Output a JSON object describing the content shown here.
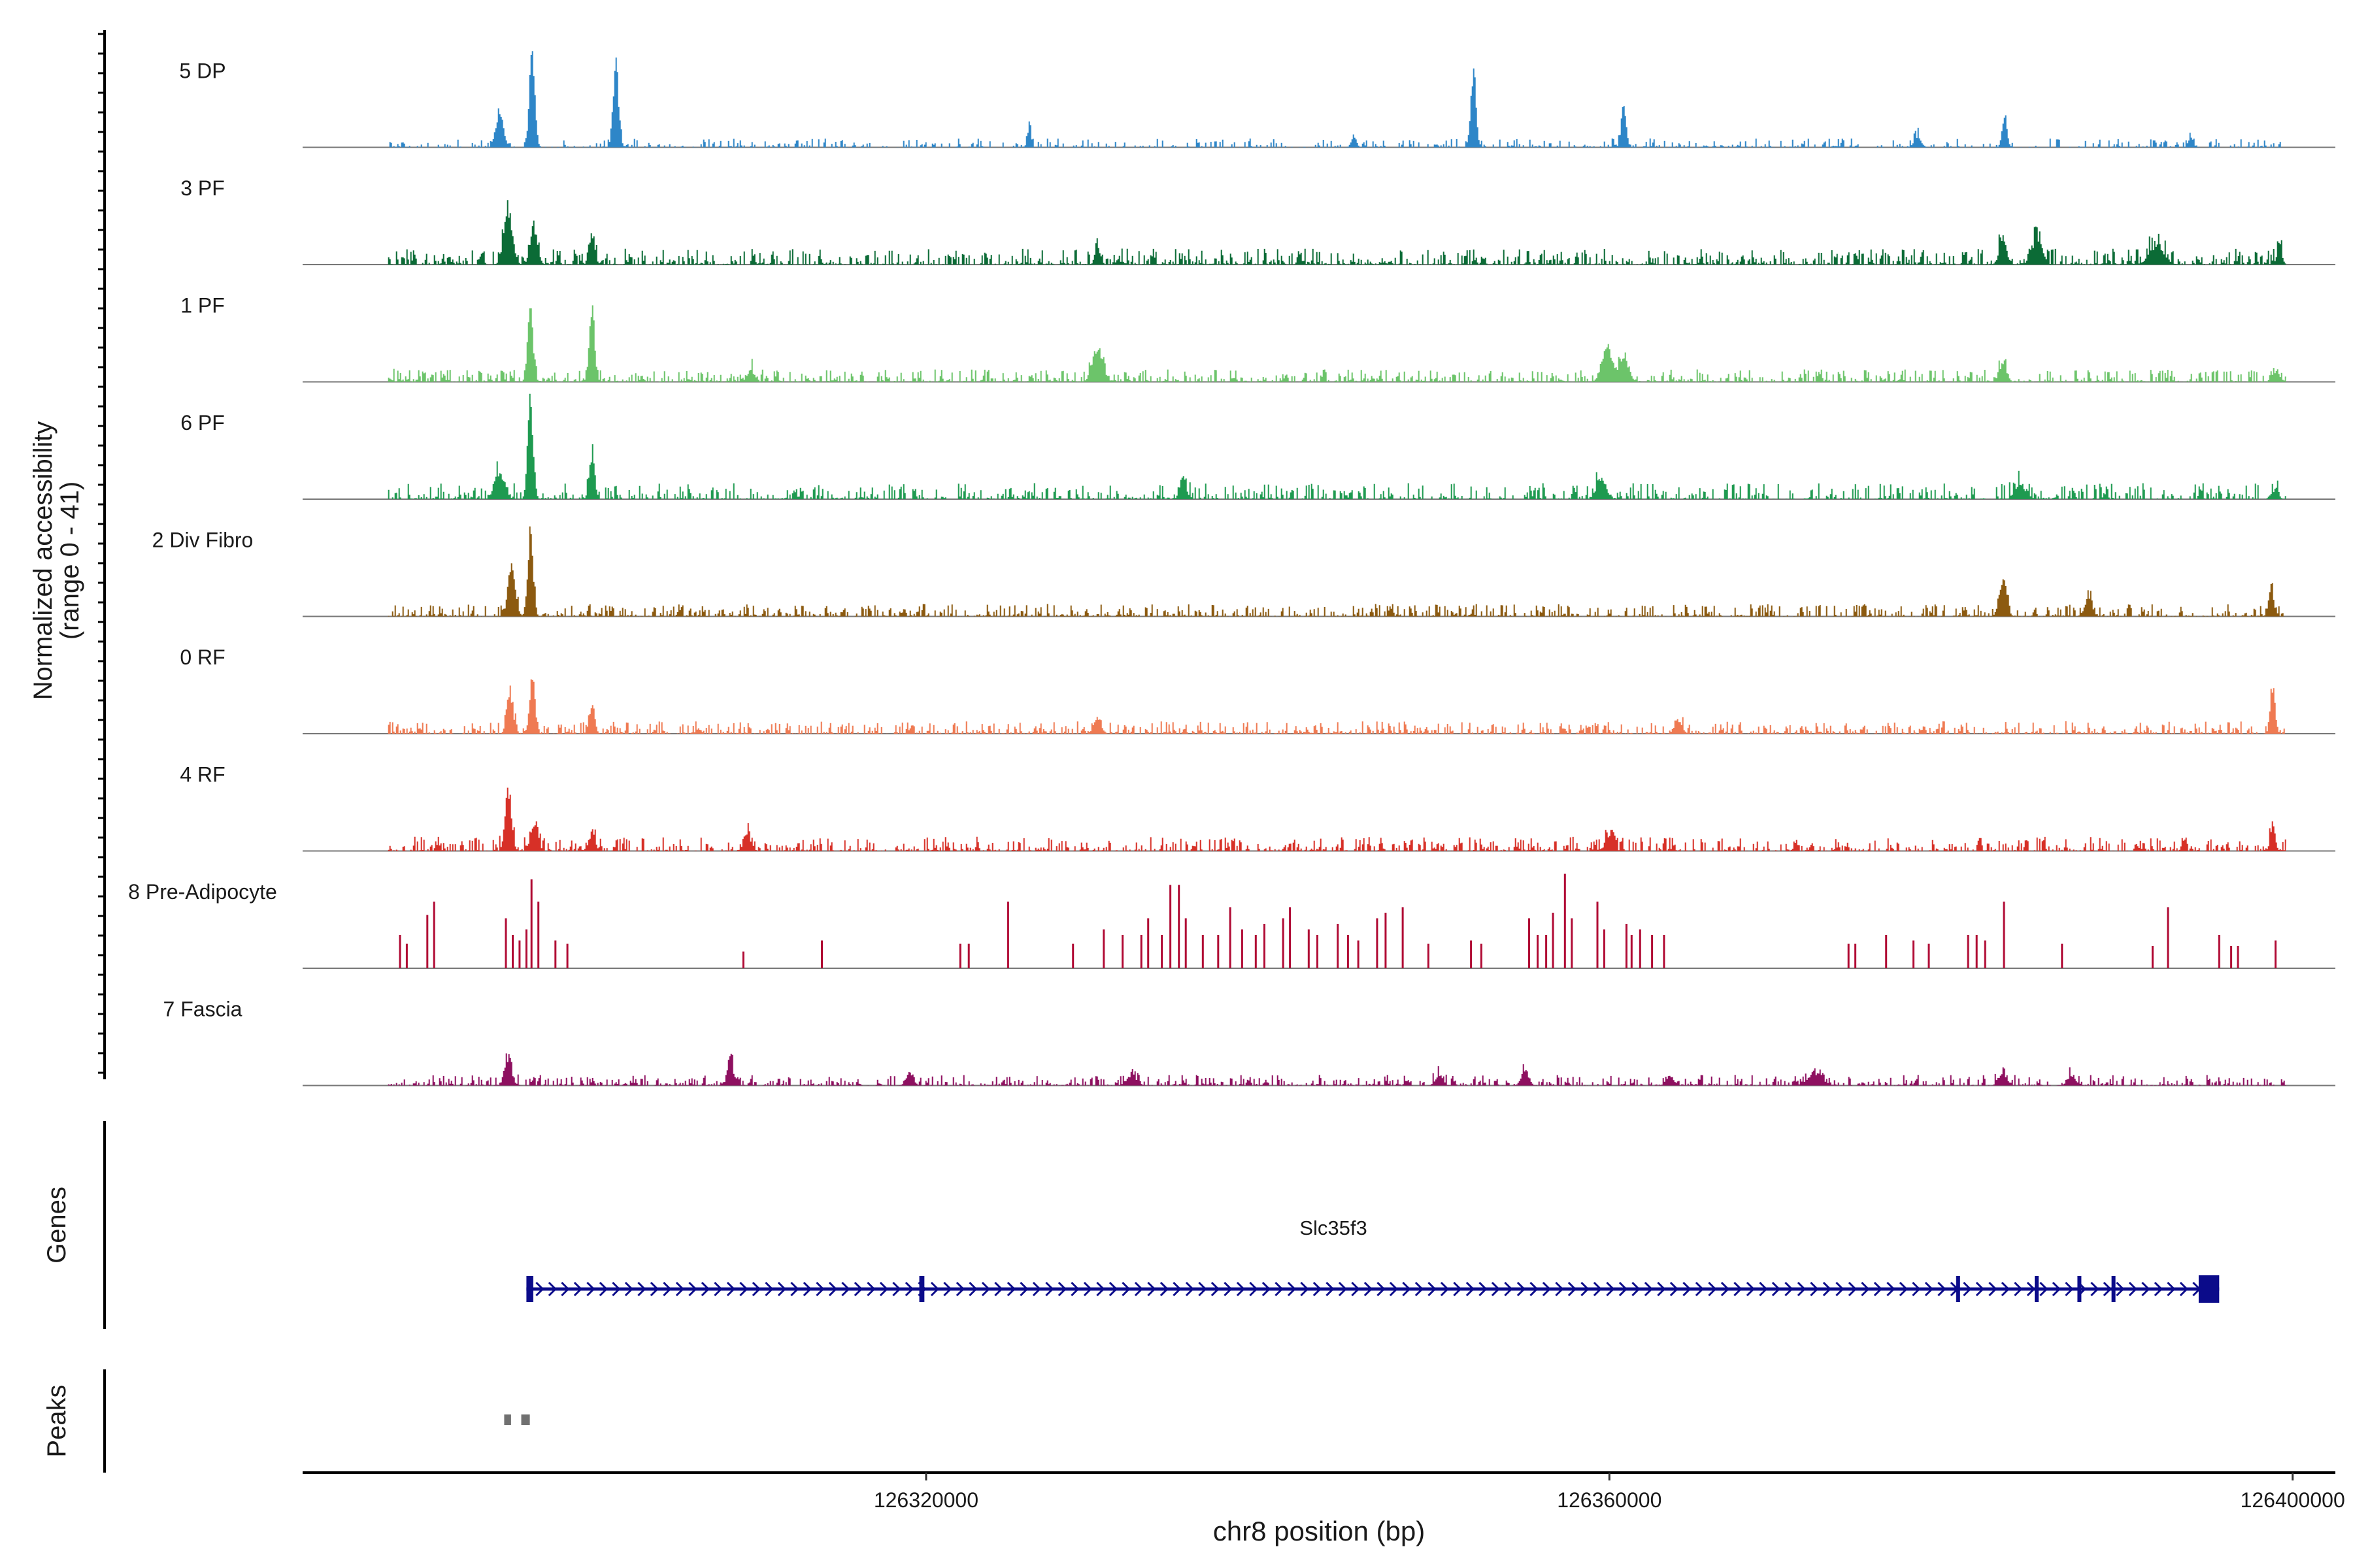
{
  "chart_data": {
    "type": "area",
    "title": "",
    "chromosome": "chr8",
    "xlabel": "chr8 position (bp)",
    "xlim": [
      126283500,
      126402500
    ],
    "xticks": [
      126320000,
      126360000,
      126400000
    ],
    "xtick_labels": [
      "126320000",
      "126360000",
      "126400000"
    ],
    "ylabel_line1": "Normalized accessibility",
    "ylabel_line2": "(range 0 - 41)",
    "ylim": [
      0,
      41
    ],
    "tracks": [
      {
        "name": "5 DP",
        "color": "#2e86c8",
        "style": "smooth",
        "density": 0.55,
        "noise": 0.05,
        "peaks": [
          [
            126295000,
            0.38,
            300
          ],
          [
            126296900,
            1.0,
            220
          ],
          [
            126301800,
            0.85,
            220
          ],
          [
            126326000,
            0.2,
            150
          ],
          [
            126345000,
            0.12,
            200
          ],
          [
            126352000,
            0.75,
            220
          ],
          [
            126360800,
            0.4,
            200
          ],
          [
            126378000,
            0.1,
            300
          ],
          [
            126383100,
            0.3,
            200
          ],
          [
            126394000,
            0.1,
            200
          ]
        ]
      },
      {
        "name": "3 PF",
        "color": "#0b6b36",
        "style": "smooth",
        "density": 0.85,
        "noise": 0.09,
        "peaks": [
          [
            126295500,
            0.55,
            350
          ],
          [
            126297000,
            0.35,
            300
          ],
          [
            126300400,
            0.32,
            220
          ],
          [
            126330000,
            0.2,
            200
          ],
          [
            126383000,
            0.25,
            300
          ],
          [
            126385000,
            0.25,
            400
          ],
          [
            126392000,
            0.18,
            600
          ],
          [
            126399200,
            0.18,
            200
          ]
        ]
      },
      {
        "name": "1 PF",
        "color": "#6cc46a",
        "style": "smooth",
        "density": 0.85,
        "noise": 0.07,
        "peaks": [
          [
            126296800,
            0.7,
            220
          ],
          [
            126300400,
            0.65,
            220
          ],
          [
            126288000,
            0.12,
            500
          ],
          [
            126309700,
            0.12,
            300
          ],
          [
            126330000,
            0.35,
            400
          ],
          [
            126359800,
            0.35,
            400
          ],
          [
            126360800,
            0.25,
            400
          ],
          [
            126383000,
            0.18,
            300
          ],
          [
            126399000,
            0.1,
            300
          ]
        ]
      },
      {
        "name": "6 PF",
        "color": "#1e9a50",
        "style": "smooth",
        "density": 0.75,
        "noise": 0.09,
        "peaks": [
          [
            126296800,
            1.0,
            220
          ],
          [
            126300400,
            0.45,
            220
          ],
          [
            126295000,
            0.25,
            400
          ],
          [
            126335000,
            0.22,
            250
          ],
          [
            126359500,
            0.2,
            400
          ],
          [
            126384000,
            0.15,
            400
          ],
          [
            126399000,
            0.12,
            200
          ]
        ]
      },
      {
        "name": "2 Div Fibro",
        "color": "#8c5a10",
        "style": "smooth",
        "density": 0.8,
        "noise": 0.07,
        "peaks": [
          [
            126295700,
            0.5,
            300
          ],
          [
            126296800,
            0.8,
            220
          ],
          [
            126383000,
            0.38,
            300
          ],
          [
            126388000,
            0.18,
            300
          ],
          [
            126398700,
            0.3,
            200
          ]
        ]
      },
      {
        "name": "0 RF",
        "color": "#ef7a52",
        "style": "smooth",
        "density": 0.85,
        "noise": 0.07,
        "peaks": [
          [
            126295600,
            0.42,
            250
          ],
          [
            126296900,
            0.55,
            220
          ],
          [
            126300400,
            0.3,
            220
          ],
          [
            126330000,
            0.16,
            300
          ],
          [
            126364000,
            0.14,
            300
          ],
          [
            126398800,
            0.45,
            200
          ]
        ]
      },
      {
        "name": "4 RF",
        "color": "#d73027",
        "style": "smooth",
        "density": 0.8,
        "noise": 0.08,
        "peaks": [
          [
            126295500,
            0.6,
            250
          ],
          [
            126297000,
            0.25,
            300
          ],
          [
            126300400,
            0.18,
            250
          ],
          [
            126309500,
            0.16,
            300
          ],
          [
            126360000,
            0.16,
            300
          ],
          [
            126398800,
            0.25,
            200
          ]
        ]
      },
      {
        "name": "8 Pre-Adipocyte",
        "color": "#b00a34",
        "style": "spikes",
        "spikes": [
          [
            126289200,
            0.3
          ],
          [
            126289600,
            0.22
          ],
          [
            126290800,
            0.48
          ],
          [
            126291200,
            0.6
          ],
          [
            126295400,
            0.45
          ],
          [
            126295800,
            0.3
          ],
          [
            126296200,
            0.25
          ],
          [
            126296600,
            0.35
          ],
          [
            126296900,
            0.8
          ],
          [
            126297300,
            0.6
          ],
          [
            126298300,
            0.25
          ],
          [
            126299000,
            0.22
          ],
          [
            126309300,
            0.15
          ],
          [
            126313900,
            0.25
          ],
          [
            126322000,
            0.22
          ],
          [
            126322500,
            0.22
          ],
          [
            126324800,
            0.6
          ],
          [
            126328600,
            0.22
          ],
          [
            126330400,
            0.35
          ],
          [
            126331500,
            0.3
          ],
          [
            126332600,
            0.3
          ],
          [
            126333000,
            0.45
          ],
          [
            126333800,
            0.3
          ],
          [
            126334300,
            0.75
          ],
          [
            126334800,
            0.75
          ],
          [
            126335200,
            0.45
          ],
          [
            126336200,
            0.3
          ],
          [
            126337100,
            0.3
          ],
          [
            126337800,
            0.55
          ],
          [
            126338500,
            0.35
          ],
          [
            126339300,
            0.3
          ],
          [
            126339800,
            0.4
          ],
          [
            126340900,
            0.45
          ],
          [
            126341300,
            0.55
          ],
          [
            126342400,
            0.35
          ],
          [
            126342900,
            0.3
          ],
          [
            126344100,
            0.4
          ],
          [
            126344700,
            0.3
          ],
          [
            126345300,
            0.25
          ],
          [
            126346400,
            0.45
          ],
          [
            126346900,
            0.5
          ],
          [
            126347900,
            0.55
          ],
          [
            126349400,
            0.22
          ],
          [
            126351900,
            0.25
          ],
          [
            126352500,
            0.22
          ],
          [
            126355300,
            0.45
          ],
          [
            126355800,
            0.3
          ],
          [
            126356300,
            0.3
          ],
          [
            126356700,
            0.5
          ],
          [
            126357400,
            0.85
          ],
          [
            126357800,
            0.45
          ],
          [
            126359300,
            0.6
          ],
          [
            126359700,
            0.35
          ],
          [
            126361000,
            0.4
          ],
          [
            126361300,
            0.3
          ],
          [
            126361800,
            0.35
          ],
          [
            126362500,
            0.3
          ],
          [
            126363200,
            0.3
          ],
          [
            126374000,
            0.22
          ],
          [
            126374400,
            0.22
          ],
          [
            126376200,
            0.3
          ],
          [
            126377800,
            0.25
          ],
          [
            126378700,
            0.22
          ],
          [
            126381000,
            0.3
          ],
          [
            126381500,
            0.3
          ],
          [
            126382000,
            0.25
          ],
          [
            126383100,
            0.6
          ],
          [
            126386500,
            0.22
          ],
          [
            126391800,
            0.2
          ],
          [
            126392700,
            0.55
          ],
          [
            126395700,
            0.3
          ],
          [
            126396400,
            0.2
          ],
          [
            126396800,
            0.2
          ],
          [
            126399000,
            0.25
          ]
        ]
      },
      {
        "name": "7 Fascia",
        "color": "#8e1060",
        "style": "smooth",
        "density": 0.8,
        "noise": 0.06,
        "peaks": [
          [
            126295500,
            0.25,
            300
          ],
          [
            126308500,
            0.32,
            220
          ],
          [
            126319000,
            0.12,
            300
          ],
          [
            126332000,
            0.1,
            400
          ],
          [
            126350000,
            0.1,
            300
          ],
          [
            126355000,
            0.14,
            300
          ],
          [
            126363500,
            0.1,
            300
          ],
          [
            126372000,
            0.12,
            600
          ],
          [
            126383000,
            0.12,
            300
          ],
          [
            126387000,
            0.1,
            300
          ]
        ]
      }
    ],
    "genes": {
      "label": "Genes",
      "gene_name": "Slc35f3",
      "strand": "+",
      "color": "#0b0b8a",
      "start": 126296600,
      "end": 126395700,
      "exons": [
        [
          126296600,
          126297000
        ],
        [
          126319600,
          126319900
        ],
        [
          126380300,
          126380500
        ],
        [
          126384900,
          126385000
        ],
        [
          126387400,
          126387600
        ],
        [
          126389400,
          126389500
        ],
        [
          126394500,
          126395700
        ]
      ]
    },
    "peaks_track": {
      "label": "Peaks",
      "color": "#707070",
      "regions": [
        [
          126295300,
          126295700
        ],
        [
          126296300,
          126296800
        ]
      ]
    }
  }
}
